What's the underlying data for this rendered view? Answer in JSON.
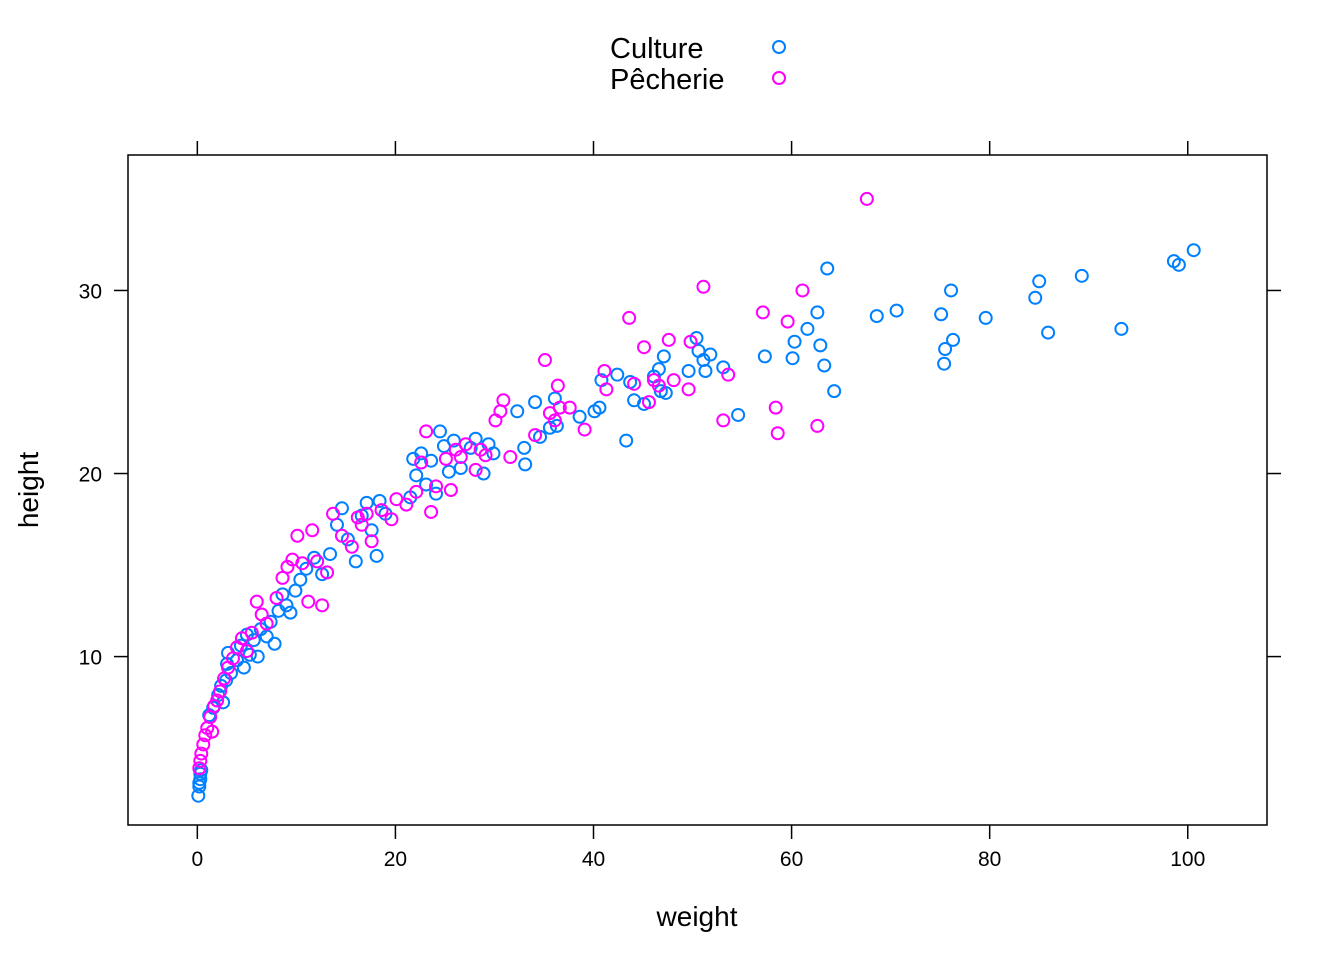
{
  "chart_data": {
    "type": "scatter",
    "xlabel": "weight",
    "ylabel": "height",
    "xlim": [
      -7,
      108
    ],
    "ylim": [
      0.8,
      37.4
    ],
    "x_ticks": [
      0,
      20,
      40,
      60,
      80,
      100
    ],
    "y_ticks": [
      10,
      20,
      30
    ],
    "legend_position": "top-center",
    "marker": "open-circle",
    "series": [
      {
        "name": "Culture",
        "color": "#0080ff",
        "points": [
          [
            0.1,
            2.4
          ],
          [
            0.2,
            2.9
          ],
          [
            0.2,
            3.1
          ],
          [
            0.3,
            3.3
          ],
          [
            0.3,
            3.6
          ],
          [
            0.4,
            3.8
          ],
          [
            1.2,
            6.8
          ],
          [
            1.6,
            7.2
          ],
          [
            2.1,
            7.9
          ],
          [
            2.4,
            8.4
          ],
          [
            2.6,
            7.5
          ],
          [
            2.9,
            8.7
          ],
          [
            3.0,
            9.6
          ],
          [
            3.1,
            10.2
          ],
          [
            3.4,
            9.1
          ],
          [
            4.0,
            9.8
          ],
          [
            4.4,
            10.6
          ],
          [
            4.7,
            9.4
          ],
          [
            5.0,
            11.2
          ],
          [
            5.3,
            10.1
          ],
          [
            5.7,
            10.9
          ],
          [
            6.1,
            10.0
          ],
          [
            6.4,
            11.5
          ],
          [
            7.0,
            11.1
          ],
          [
            7.4,
            11.9
          ],
          [
            7.8,
            10.7
          ],
          [
            8.2,
            12.5
          ],
          [
            8.6,
            13.4
          ],
          [
            9.0,
            12.8
          ],
          [
            9.4,
            12.4
          ],
          [
            9.9,
            13.6
          ],
          [
            10.4,
            14.2
          ],
          [
            11.0,
            14.8
          ],
          [
            11.8,
            15.4
          ],
          [
            12.6,
            14.5
          ],
          [
            13.4,
            15.6
          ],
          [
            14.1,
            17.2
          ],
          [
            14.6,
            18.1
          ],
          [
            15.2,
            16.4
          ],
          [
            16.0,
            15.2
          ],
          [
            16.6,
            17.7
          ],
          [
            17.1,
            18.4
          ],
          [
            17.6,
            16.9
          ],
          [
            18.1,
            15.5
          ],
          [
            18.4,
            18.5
          ],
          [
            19.0,
            17.8
          ],
          [
            21.5,
            18.7
          ],
          [
            21.8,
            20.8
          ],
          [
            22.1,
            19.9
          ],
          [
            22.6,
            21.1
          ],
          [
            23.1,
            19.4
          ],
          [
            23.6,
            20.7
          ],
          [
            24.1,
            18.9
          ],
          [
            24.5,
            22.3
          ],
          [
            24.9,
            21.5
          ],
          [
            25.4,
            20.1
          ],
          [
            25.9,
            21.8
          ],
          [
            26.6,
            20.3
          ],
          [
            27.6,
            21.4
          ],
          [
            28.1,
            21.9
          ],
          [
            28.9,
            20.0
          ],
          [
            29.4,
            21.6
          ],
          [
            29.9,
            21.1
          ],
          [
            32.3,
            23.4
          ],
          [
            33.0,
            21.4
          ],
          [
            33.1,
            20.5
          ],
          [
            34.1,
            23.9
          ],
          [
            34.6,
            22.0
          ],
          [
            35.6,
            22.5
          ],
          [
            36.1,
            24.1
          ],
          [
            36.3,
            22.6
          ],
          [
            38.6,
            23.1
          ],
          [
            40.1,
            23.4
          ],
          [
            40.6,
            23.6
          ],
          [
            40.8,
            25.1
          ],
          [
            42.4,
            25.4
          ],
          [
            43.3,
            21.8
          ],
          [
            43.7,
            25.0
          ],
          [
            44.1,
            24.0
          ],
          [
            45.1,
            23.8
          ],
          [
            46.1,
            25.3
          ],
          [
            46.6,
            25.7
          ],
          [
            46.8,
            24.5
          ],
          [
            47.1,
            26.4
          ],
          [
            47.3,
            24.4
          ],
          [
            49.6,
            25.6
          ],
          [
            50.4,
            27.4
          ],
          [
            50.6,
            26.7
          ],
          [
            51.1,
            26.2
          ],
          [
            51.3,
            25.6
          ],
          [
            51.8,
            26.5
          ],
          [
            53.1,
            25.8
          ],
          [
            54.6,
            23.2
          ],
          [
            57.3,
            26.4
          ],
          [
            60.1,
            26.3
          ],
          [
            60.3,
            27.2
          ],
          [
            61.6,
            27.9
          ],
          [
            62.6,
            28.8
          ],
          [
            62.9,
            27.0
          ],
          [
            63.3,
            25.9
          ],
          [
            63.6,
            31.2
          ],
          [
            64.3,
            24.5
          ],
          [
            68.6,
            28.6
          ],
          [
            70.6,
            28.9
          ],
          [
            75.1,
            28.7
          ],
          [
            75.4,
            26.0
          ],
          [
            75.5,
            26.8
          ],
          [
            76.1,
            30.0
          ],
          [
            76.3,
            27.3
          ],
          [
            79.6,
            28.5
          ],
          [
            84.6,
            29.6
          ],
          [
            85.0,
            30.5
          ],
          [
            85.9,
            27.7
          ],
          [
            89.3,
            30.8
          ],
          [
            93.3,
            27.9
          ],
          [
            98.6,
            31.6
          ],
          [
            99.1,
            31.4
          ],
          [
            100.6,
            32.2
          ]
        ]
      },
      {
        "name": "Pêcherie",
        "color": "#ff00ff",
        "points": [
          [
            0.2,
            3.9
          ],
          [
            0.3,
            4.3
          ],
          [
            0.4,
            4.7
          ],
          [
            0.6,
            5.2
          ],
          [
            0.8,
            5.7
          ],
          [
            1.0,
            6.1
          ],
          [
            1.3,
            6.7
          ],
          [
            1.5,
            5.9
          ],
          [
            1.7,
            7.3
          ],
          [
            2.0,
            7.6
          ],
          [
            2.3,
            8.1
          ],
          [
            2.7,
            8.8
          ],
          [
            3.1,
            9.4
          ],
          [
            3.6,
            9.9
          ],
          [
            4.0,
            10.5
          ],
          [
            4.5,
            11.0
          ],
          [
            5.0,
            10.3
          ],
          [
            5.5,
            11.3
          ],
          [
            6.0,
            13.0
          ],
          [
            6.5,
            12.3
          ],
          [
            7.0,
            11.8
          ],
          [
            8.0,
            13.2
          ],
          [
            8.6,
            14.3
          ],
          [
            9.1,
            14.9
          ],
          [
            9.6,
            15.3
          ],
          [
            10.1,
            16.6
          ],
          [
            10.6,
            15.1
          ],
          [
            11.2,
            13.0
          ],
          [
            11.6,
            16.9
          ],
          [
            12.1,
            15.2
          ],
          [
            12.6,
            12.8
          ],
          [
            13.1,
            14.6
          ],
          [
            13.7,
            17.8
          ],
          [
            14.6,
            16.6
          ],
          [
            15.6,
            16.0
          ],
          [
            16.2,
            17.6
          ],
          [
            16.6,
            17.2
          ],
          [
            17.1,
            17.8
          ],
          [
            17.6,
            16.3
          ],
          [
            18.6,
            18.0
          ],
          [
            19.6,
            17.5
          ],
          [
            20.1,
            18.6
          ],
          [
            21.1,
            18.3
          ],
          [
            22.1,
            19.0
          ],
          [
            22.6,
            20.6
          ],
          [
            23.1,
            22.3
          ],
          [
            23.6,
            17.9
          ],
          [
            24.1,
            19.3
          ],
          [
            25.1,
            20.8
          ],
          [
            25.6,
            19.1
          ],
          [
            26.1,
            21.3
          ],
          [
            26.6,
            20.9
          ],
          [
            27.1,
            21.6
          ],
          [
            28.1,
            20.2
          ],
          [
            28.6,
            21.3
          ],
          [
            29.1,
            21.0
          ],
          [
            30.1,
            22.9
          ],
          [
            30.6,
            23.4
          ],
          [
            30.9,
            24.0
          ],
          [
            31.6,
            20.9
          ],
          [
            34.1,
            22.1
          ],
          [
            35.1,
            26.2
          ],
          [
            35.6,
            23.3
          ],
          [
            36.1,
            22.9
          ],
          [
            36.4,
            24.8
          ],
          [
            36.6,
            23.6
          ],
          [
            37.6,
            23.6
          ],
          [
            39.1,
            22.4
          ],
          [
            41.1,
            25.6
          ],
          [
            41.3,
            24.6
          ],
          [
            43.6,
            28.5
          ],
          [
            44.1,
            24.9
          ],
          [
            45.1,
            26.9
          ],
          [
            45.6,
            23.9
          ],
          [
            46.1,
            25.1
          ],
          [
            46.6,
            24.8
          ],
          [
            47.6,
            27.3
          ],
          [
            48.1,
            25.1
          ],
          [
            49.6,
            24.6
          ],
          [
            49.8,
            27.2
          ],
          [
            51.1,
            30.2
          ],
          [
            53.1,
            22.9
          ],
          [
            53.6,
            25.4
          ],
          [
            57.1,
            28.8
          ],
          [
            58.4,
            23.6
          ],
          [
            58.6,
            22.2
          ],
          [
            59.6,
            28.3
          ],
          [
            61.1,
            30.0
          ],
          [
            62.6,
            22.6
          ],
          [
            67.6,
            35.0
          ]
        ]
      }
    ]
  }
}
